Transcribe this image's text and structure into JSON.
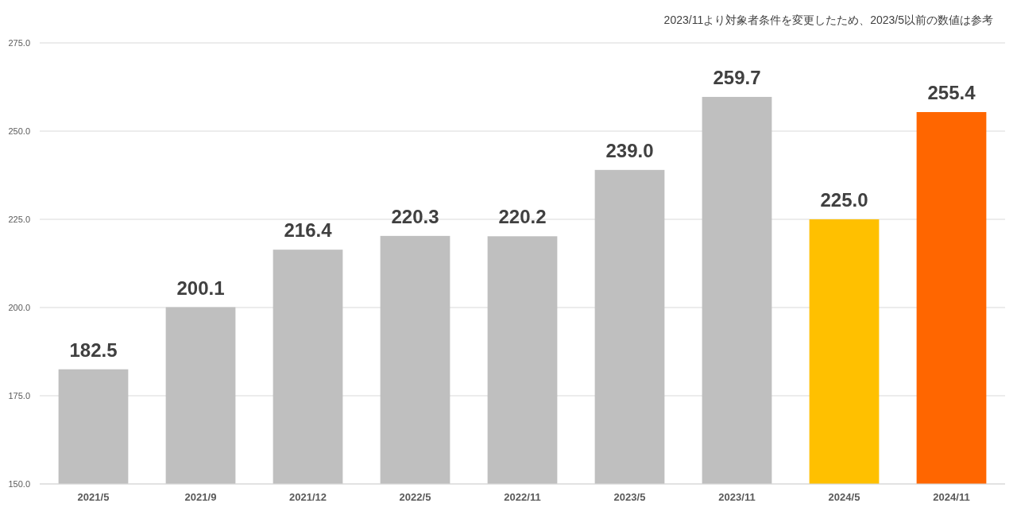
{
  "chart_data": {
    "type": "bar",
    "annotations": [
      "2023/11より対象者条件を変更したため、2023/5以前の数値は参考"
    ],
    "categories": [
      "2021/5",
      "2021/9",
      "2021/12",
      "2022/5",
      "2022/11",
      "2023/5",
      "2023/11",
      "2024/5",
      "2024/11"
    ],
    "values": [
      182.5,
      200.1,
      216.4,
      220.3,
      220.2,
      239.0,
      259.7,
      225.0,
      255.4
    ],
    "value_labels": [
      "182.5",
      "200.1",
      "216.4",
      "220.3",
      "220.2",
      "239.0",
      "259.7",
      "225.0",
      "255.4"
    ],
    "colors": [
      "#bfbfbf",
      "#bfbfbf",
      "#bfbfbf",
      "#bfbfbf",
      "#bfbfbf",
      "#bfbfbf",
      "#bfbfbf",
      "#ffc000",
      "#ff6600"
    ],
    "ylim": [
      150,
      275
    ],
    "yticks": [
      {
        "value": 150,
        "label": "150.0"
      },
      {
        "value": 175,
        "label": "175.0"
      },
      {
        "value": 200,
        "label": "200.0"
      },
      {
        "value": 225,
        "label": "225.0"
      },
      {
        "value": 250,
        "label": "250.0"
      },
      {
        "value": 275,
        "label": "275.0"
      }
    ],
    "grid": "y"
  }
}
